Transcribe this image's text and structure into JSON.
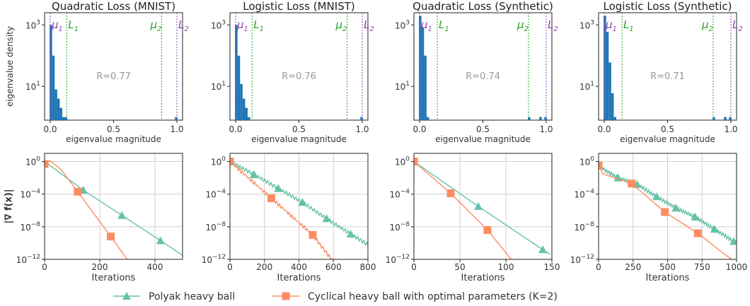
{
  "chart_data": [
    {
      "type": "histogram",
      "title": "Quadratic Loss (MNIST)",
      "xlabel": "eigenvalue magnitude",
      "ylabel": "eigenvalue density",
      "xticks": [
        "0.0",
        "0.5",
        "1.0"
      ],
      "yticks": [
        {
          "base": "10",
          "exp": "3",
          "value": 1000
        },
        {
          "base": "10",
          "exp": "1",
          "value": 10
        }
      ],
      "annotation": "R=0.77",
      "markers": [
        {
          "label": "μ",
          "sub": "1",
          "x": 0.0,
          "color": "#8e44ad"
        },
        {
          "label": "L",
          "sub": "1",
          "x": 0.13,
          "color": "#2ca02c"
        },
        {
          "label": "μ",
          "sub": "2",
          "x": 0.88,
          "color": "#2ca02c"
        },
        {
          "label": "L",
          "sub": "2",
          "x": 1.0,
          "color": "#8e44ad"
        }
      ],
      "bars": [
        {
          "x": 0.005,
          "y": 1000
        },
        {
          "x": 0.025,
          "y": 100
        },
        {
          "x": 0.045,
          "y": 8
        },
        {
          "x": 0.065,
          "y": 4
        },
        {
          "x": 0.085,
          "y": 2
        },
        {
          "x": 0.105,
          "y": 1
        },
        {
          "x": 0.125,
          "y": 1
        },
        {
          "x": 0.995,
          "y": 1
        }
      ]
    },
    {
      "type": "histogram",
      "title": "Logistic Loss (MNIST)",
      "xlabel": "eigenvalue magnitude",
      "ylabel": "",
      "xticks": [
        "0.0",
        "0.5",
        "1.0"
      ],
      "yticks": [
        {
          "base": "10",
          "exp": "3",
          "value": 1000
        },
        {
          "base": "10",
          "exp": "1",
          "value": 10
        }
      ],
      "annotation": "R=0.76",
      "markers": [
        {
          "label": "μ",
          "sub": "1",
          "x": 0.0,
          "color": "#8e44ad"
        },
        {
          "label": "L",
          "sub": "1",
          "x": 0.13,
          "color": "#2ca02c"
        },
        {
          "label": "μ",
          "sub": "2",
          "x": 0.88,
          "color": "#2ca02c"
        },
        {
          "label": "L",
          "sub": "2",
          "x": 1.0,
          "color": "#8e44ad"
        }
      ],
      "bars": [
        {
          "x": 0.005,
          "y": 1000
        },
        {
          "x": 0.025,
          "y": 100
        },
        {
          "x": 0.045,
          "y": 12
        },
        {
          "x": 0.065,
          "y": 4
        },
        {
          "x": 0.085,
          "y": 2
        },
        {
          "x": 0.105,
          "y": 1
        },
        {
          "x": 0.995,
          "y": 1
        }
      ]
    },
    {
      "type": "histogram",
      "title": "Quadratic Loss (Synthetic)",
      "xlabel": "eigenvalue magnitude",
      "ylabel": "",
      "xticks": [
        "0.0",
        "0.5",
        "1.0"
      ],
      "yticks": [
        {
          "base": "10",
          "exp": "3",
          "value": 1000
        },
        {
          "base": "10",
          "exp": "1",
          "value": 10
        }
      ],
      "annotation": "R=0.74",
      "markers": [
        {
          "label": "μ",
          "sub": "1",
          "x": 0.0,
          "color": "#8e44ad"
        },
        {
          "label": "L",
          "sub": "1",
          "x": 0.14,
          "color": "#2ca02c"
        },
        {
          "label": "μ",
          "sub": "2",
          "x": 0.86,
          "color": "#2ca02c"
        },
        {
          "label": "L",
          "sub": "2",
          "x": 1.0,
          "color": "#8e44ad"
        }
      ],
      "bars": [
        {
          "x": 0.005,
          "y": 2000
        },
        {
          "x": 0.025,
          "y": 800
        },
        {
          "x": 0.045,
          "y": 100
        },
        {
          "x": 0.065,
          "y": 1
        },
        {
          "x": 0.865,
          "y": 1
        },
        {
          "x": 0.955,
          "y": 1
        },
        {
          "x": 0.995,
          "y": 1
        }
      ]
    },
    {
      "type": "histogram",
      "title": "Logistic Loss (Synthetic)",
      "xlabel": "eigenvalue magnitude",
      "ylabel": "",
      "xticks": [
        "0.0",
        "0.5",
        "1.0"
      ],
      "yticks": [
        {
          "base": "10",
          "exp": "3",
          "value": 1000
        },
        {
          "base": "10",
          "exp": "1",
          "value": 10
        }
      ],
      "annotation": "R=0.71",
      "markers": [
        {
          "label": "μ",
          "sub": "1",
          "x": 0.0,
          "color": "#8e44ad"
        },
        {
          "label": "L",
          "sub": "1",
          "x": 0.14,
          "color": "#2ca02c"
        },
        {
          "label": "μ",
          "sub": "2",
          "x": 0.86,
          "color": "#2ca02c"
        },
        {
          "label": "L",
          "sub": "2",
          "x": 1.0,
          "color": "#8e44ad"
        }
      ],
      "bars": [
        {
          "x": 0.005,
          "y": 2000
        },
        {
          "x": 0.025,
          "y": 600
        },
        {
          "x": 0.045,
          "y": 60
        },
        {
          "x": 0.065,
          "y": 6
        },
        {
          "x": 0.085,
          "y": 1
        },
        {
          "x": 0.865,
          "y": 1
        },
        {
          "x": 0.955,
          "y": 1
        },
        {
          "x": 0.995,
          "y": 1
        }
      ]
    },
    {
      "type": "line",
      "xlabel": "Iterations",
      "ylabel": "|∇ f(x)|",
      "xlim": [
        0,
        500
      ],
      "ylim_exp": [
        -12,
        1
      ],
      "log_y": true,
      "grid": true,
      "xticks": [
        "0",
        "200",
        "400"
      ],
      "xtick_values": [
        0,
        200,
        400
      ],
      "yticks": [
        {
          "base": "10",
          "exp": "0",
          "value": 0
        },
        {
          "base": "10",
          "exp": "−4",
          "value": -4
        },
        {
          "base": "10",
          "exp": "−8",
          "value": -8
        },
        {
          "base": "10",
          "exp": "−12",
          "value": -12
        }
      ],
      "series": [
        {
          "color": "#66c2a5",
          "marker": "triangle",
          "points": [
            [
              0,
              0
            ],
            [
              140,
              -3.5
            ],
            [
              280,
              -6.6
            ],
            [
              420,
              -9.7
            ],
            [
              500,
              -11.5
            ]
          ],
          "markers": [
            [
              140,
              -3.5
            ],
            [
              280,
              -6.6
            ],
            [
              420,
              -9.7
            ]
          ]
        },
        {
          "color": "#fc8d62",
          "marker": "square",
          "points": [
            [
              0,
              -0.3
            ],
            [
              20,
              0.1
            ],
            [
              60,
              -1
            ],
            [
              120,
              -3.7
            ],
            [
              240,
              -9.2
            ],
            [
              310,
              -12.5
            ]
          ],
          "markers": [
            [
              0,
              -0.3
            ],
            [
              120,
              -3.7
            ],
            [
              240,
              -9.2
            ]
          ]
        }
      ]
    },
    {
      "type": "line",
      "xlabel": "Iterations",
      "ylabel": "",
      "xlim": [
        0,
        800
      ],
      "ylim_exp": [
        -12,
        1
      ],
      "log_y": true,
      "grid": true,
      "xticks": [
        "0",
        "200",
        "400",
        "600",
        "800"
      ],
      "xtick_values": [
        0,
        200,
        400,
        600,
        800
      ],
      "yticks": [
        {
          "base": "10",
          "exp": "0",
          "value": 0
        },
        {
          "base": "10",
          "exp": "−4",
          "value": -4
        },
        {
          "base": "10",
          "exp": "−8",
          "value": -8
        },
        {
          "base": "10",
          "exp": "−12",
          "value": -12
        }
      ],
      "series": [
        {
          "color": "#66c2a5",
          "marker": "triangle",
          "wiggle": true,
          "points": [
            [
              0,
              0
            ],
            [
              140,
              -1.6
            ],
            [
              280,
              -3.3
            ],
            [
              420,
              -5.0
            ],
            [
              560,
              -7.0
            ],
            [
              700,
              -8.9
            ],
            [
              800,
              -10.2
            ]
          ],
          "markers": [
            [
              140,
              -1.6
            ],
            [
              280,
              -3.3
            ],
            [
              420,
              -5.0
            ],
            [
              560,
              -7.0
            ],
            [
              700,
              -8.9
            ]
          ]
        },
        {
          "color": "#fc8d62",
          "marker": "square",
          "wiggle": true,
          "points": [
            [
              0,
              0
            ],
            [
              240,
              -4.5
            ],
            [
              480,
              -9.0
            ],
            [
              600,
              -12.3
            ]
          ],
          "markers": [
            [
              0,
              0
            ],
            [
              240,
              -4.5
            ],
            [
              480,
              -9.0
            ]
          ]
        }
      ]
    },
    {
      "type": "line",
      "xlabel": "Iterations",
      "ylabel": "",
      "xlim": [
        0,
        150
      ],
      "ylim_exp": [
        -12,
        1
      ],
      "log_y": true,
      "grid": true,
      "xticks": [
        "0",
        "50",
        "100",
        "150"
      ],
      "xtick_values": [
        0,
        50,
        100,
        150
      ],
      "yticks": [
        {
          "base": "10",
          "exp": "0",
          "value": 0
        },
        {
          "base": "10",
          "exp": "−4",
          "value": -4
        },
        {
          "base": "10",
          "exp": "−8",
          "value": -8
        },
        {
          "base": "10",
          "exp": "−12",
          "value": -12
        }
      ],
      "series": [
        {
          "color": "#66c2a5",
          "marker": "triangle",
          "points": [
            [
              0,
              0
            ],
            [
              70,
              -5.5
            ],
            [
              140,
              -10.8
            ],
            [
              148,
              -11.4
            ]
          ],
          "markers": [
            [
              70,
              -5.5
            ],
            [
              140,
              -10.8
            ]
          ]
        },
        {
          "color": "#fc8d62",
          "marker": "square",
          "points": [
            [
              0,
              0
            ],
            [
              40,
              -3.9
            ],
            [
              80,
              -8.4
            ],
            [
              108,
              -12.3
            ]
          ],
          "markers": [
            [
              0,
              0
            ],
            [
              40,
              -3.9
            ],
            [
              80,
              -8.4
            ]
          ]
        }
      ]
    },
    {
      "type": "line",
      "xlabel": "Iterations",
      "ylabel": "",
      "xlim": [
        0,
        1000
      ],
      "ylim_exp": [
        -12,
        1
      ],
      "log_y": true,
      "grid": true,
      "xticks": [
        "0",
        "250",
        "500",
        "750",
        "1000"
      ],
      "xtick_values": [
        0,
        250,
        500,
        750,
        1000
      ],
      "yticks": [
        {
          "base": "10",
          "exp": "0",
          "value": 0
        },
        {
          "base": "10",
          "exp": "−4",
          "value": -4
        },
        {
          "base": "10",
          "exp": "−8",
          "value": -8
        },
        {
          "base": "10",
          "exp": "−12",
          "value": -12
        }
      ],
      "series": [
        {
          "color": "#66c2a5",
          "marker": "triangle",
          "wiggle": true,
          "points": [
            [
              0,
              0
            ],
            [
              40,
              -1
            ],
            [
              140,
              -2
            ],
            [
              280,
              -2.8
            ],
            [
              420,
              -4.3
            ],
            [
              560,
              -5.7
            ],
            [
              700,
              -6.8
            ],
            [
              840,
              -8.3
            ],
            [
              980,
              -9.8
            ],
            [
              1000,
              -10
            ]
          ],
          "markers": [
            [
              140,
              -2
            ],
            [
              280,
              -2.8
            ],
            [
              420,
              -4.3
            ],
            [
              560,
              -5.7
            ],
            [
              700,
              -6.8
            ],
            [
              840,
              -8.3
            ],
            [
              980,
              -9.8
            ]
          ]
        },
        {
          "color": "#fc8d62",
          "marker": "square",
          "points": [
            [
              0,
              -0.5
            ],
            [
              30,
              -1.5
            ],
            [
              240,
              -2.7
            ],
            [
              480,
              -6.2
            ],
            [
              720,
              -8.8
            ],
            [
              900,
              -11.2
            ],
            [
              980,
              -12.2
            ]
          ],
          "markers": [
            [
              0,
              -0.5
            ],
            [
              240,
              -2.7
            ],
            [
              480,
              -6.2
            ],
            [
              720,
              -8.8
            ]
          ]
        }
      ]
    }
  ],
  "legend": {
    "items": [
      {
        "label": "Polyak heavy ball",
        "color": "#66c2a5",
        "marker": "triangle"
      },
      {
        "label": "Cyclical heavy ball with optimal parameters (K=2)",
        "color": "#fc8d62",
        "marker": "square"
      }
    ]
  }
}
